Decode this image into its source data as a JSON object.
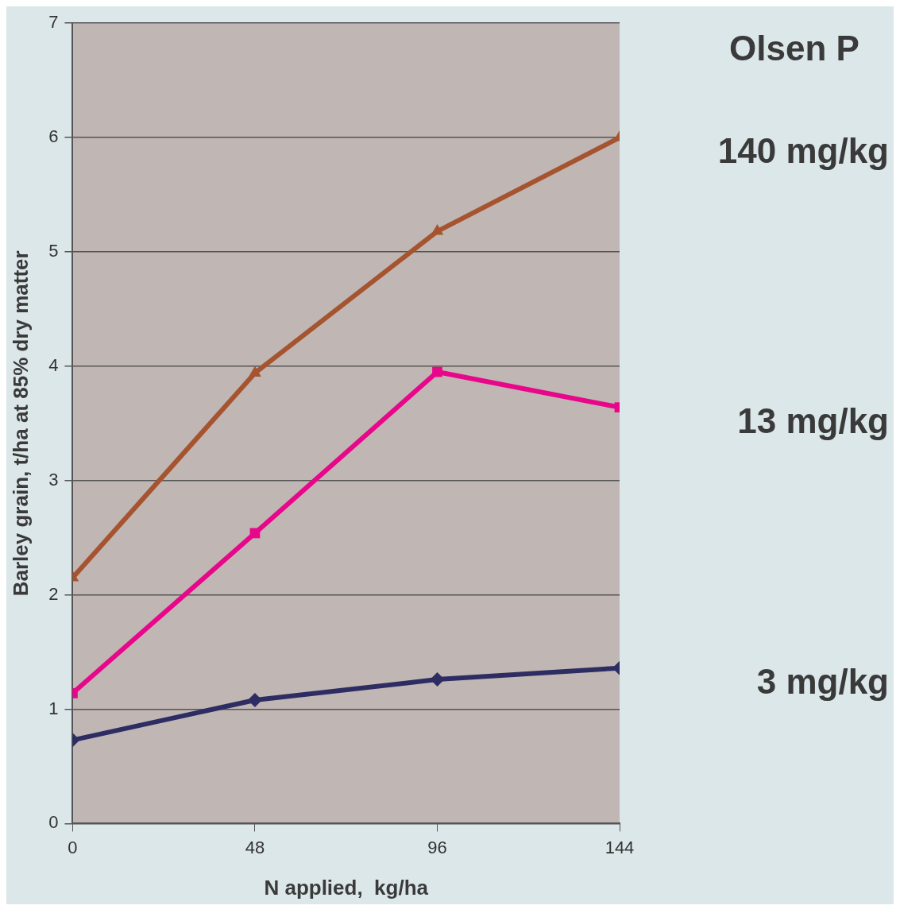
{
  "chart_data": {
    "type": "line",
    "xlabel": "N applied,  kg/ha",
    "ylabel": "Barley grain, t/ha at 85% dry matter",
    "legend_title": "Olsen P",
    "x": [
      0,
      48,
      96,
      144
    ],
    "xlim": [
      0,
      144
    ],
    "xticks": [
      0,
      48,
      96,
      144
    ],
    "ylim": [
      0,
      7
    ],
    "yticks": [
      0,
      1,
      2,
      3,
      4,
      5,
      6,
      7
    ],
    "grid": "y",
    "legend": "right",
    "series": [
      {
        "name": "140 mg/kg",
        "color": "#a65430",
        "marker": "triangle",
        "values": [
          2.15,
          3.94,
          5.18,
          6.0
        ]
      },
      {
        "name": "13 mg/kg",
        "color": "#e8068a",
        "marker": "square",
        "values": [
          1.14,
          2.54,
          3.95,
          3.64
        ]
      },
      {
        "name": "3 mg/kg",
        "color": "#2e2d63",
        "marker": "diamond",
        "values": [
          0.73,
          1.08,
          1.26,
          1.36
        ]
      }
    ]
  }
}
